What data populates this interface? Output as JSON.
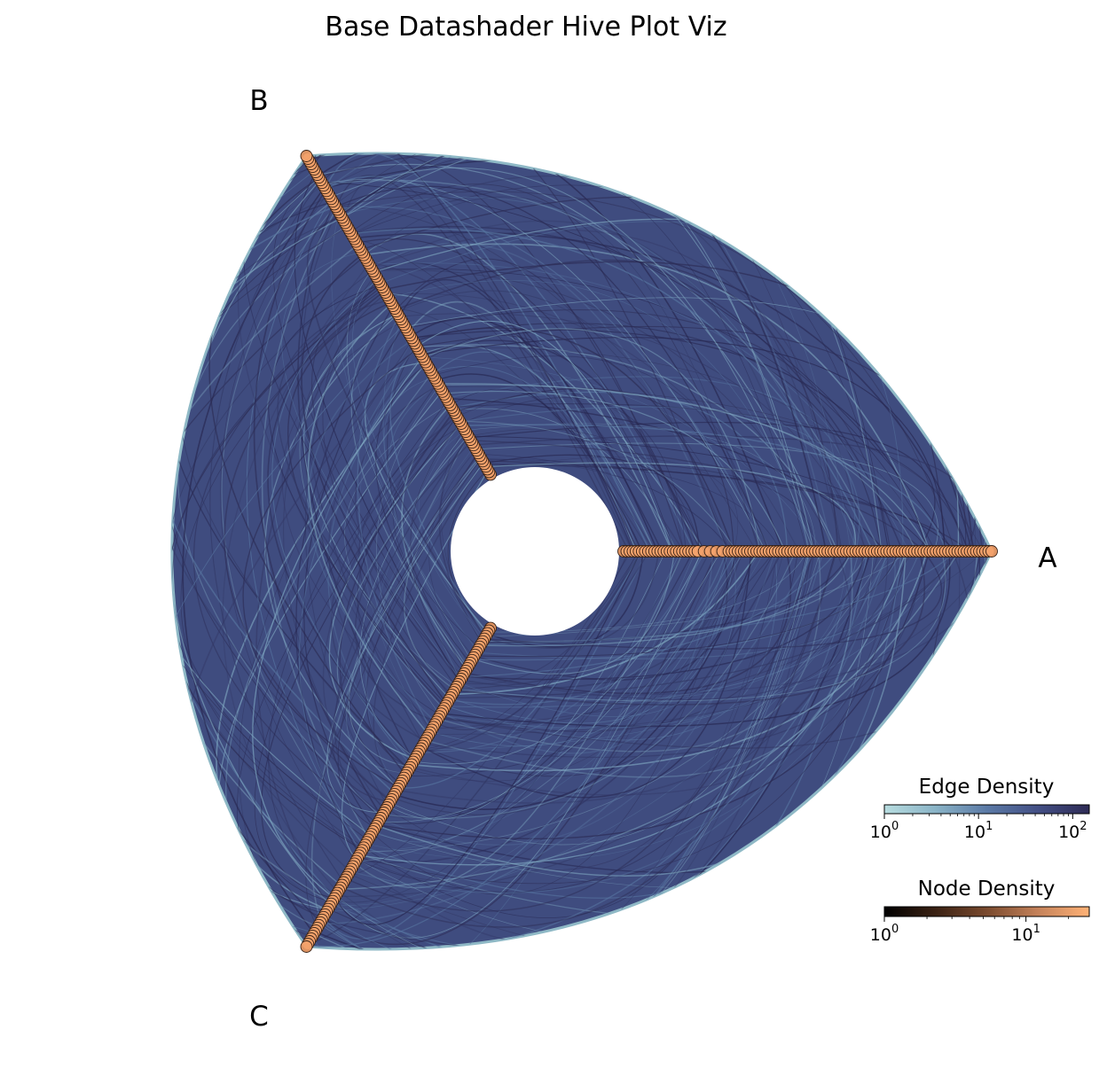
{
  "chart_data": {
    "type": "hive",
    "title": "Base Datashader Hive Plot Viz",
    "axes": [
      {
        "name": "A",
        "angle_deg": 0
      },
      {
        "name": "B",
        "angle_deg": 120
      },
      {
        "name": "C",
        "angle_deg": 240
      }
    ],
    "colorbars": [
      {
        "title": "Edge Density",
        "scale": "log",
        "range": [
          1,
          150
        ],
        "ticks": [
          {
            "base": "10",
            "exp": "0",
            "value": 1
          },
          {
            "base": "10",
            "exp": "1",
            "value": 10
          },
          {
            "base": "10",
            "exp": "2",
            "value": 100
          }
        ],
        "colors": [
          "#b8dde0",
          "#8ab4c7",
          "#5b7aa6",
          "#434f85",
          "#2e2b55"
        ]
      },
      {
        "title": "Node Density",
        "scale": "log",
        "range": [
          1,
          28
        ],
        "ticks": [
          {
            "base": "10",
            "exp": "0",
            "value": 1
          },
          {
            "base": "10",
            "exp": "1",
            "value": 10
          }
        ],
        "colors": [
          "#000000",
          "#3a2113",
          "#7a4a2e",
          "#c5825a",
          "#ffb276"
        ]
      }
    ],
    "edge_color": "#3f4c7f",
    "node_color": "#f4a26b"
  }
}
